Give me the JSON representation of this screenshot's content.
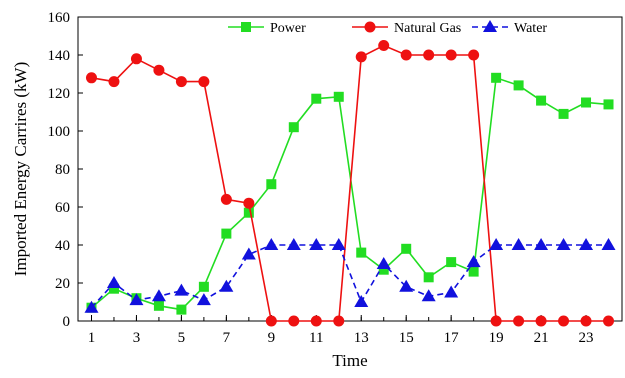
{
  "chart_data": {
    "type": "line",
    "xlabel": "Time",
    "ylabel": "Imported Energy Carrires (kW)",
    "xlim": [
      0.4,
      24.6
    ],
    "ylim": [
      0,
      160
    ],
    "x_ticks": [
      1,
      3,
      5,
      7,
      9,
      11,
      13,
      15,
      17,
      19,
      21,
      23
    ],
    "y_ticks": [
      0,
      20,
      40,
      60,
      80,
      100,
      120,
      140,
      160
    ],
    "grid": false,
    "legend_position": "top",
    "x": [
      1,
      2,
      3,
      4,
      5,
      6,
      7,
      8,
      9,
      10,
      11,
      12,
      13,
      14,
      15,
      16,
      17,
      18,
      19,
      20,
      21,
      22,
      23,
      24
    ],
    "series": [
      {
        "name": "Power",
        "color": "#22dd22",
        "marker": "square",
        "line_style": "solid",
        "values": [
          7,
          17,
          12,
          8,
          6,
          18,
          46,
          57,
          72,
          102,
          117,
          118,
          36,
          27,
          38,
          23,
          31,
          26,
          128,
          124,
          116,
          109,
          115,
          114
        ]
      },
      {
        "name": "Natural Gas",
        "color": "#ee1111",
        "marker": "circle",
        "line_style": "solid",
        "values": [
          128,
          126,
          138,
          132,
          126,
          126,
          64,
          62,
          0,
          0,
          0,
          0,
          139,
          145,
          140,
          140,
          140,
          140,
          0,
          0,
          0,
          0,
          0,
          0
        ]
      },
      {
        "name": "Water",
        "color": "#1111dd",
        "marker": "triangle",
        "line_style": "dashed",
        "values": [
          7,
          20,
          11,
          13,
          16,
          11,
          18,
          35,
          40,
          40,
          40,
          40,
          10,
          30,
          18,
          13,
          15,
          31,
          40,
          40,
          40,
          40,
          40,
          40
        ]
      }
    ]
  }
}
